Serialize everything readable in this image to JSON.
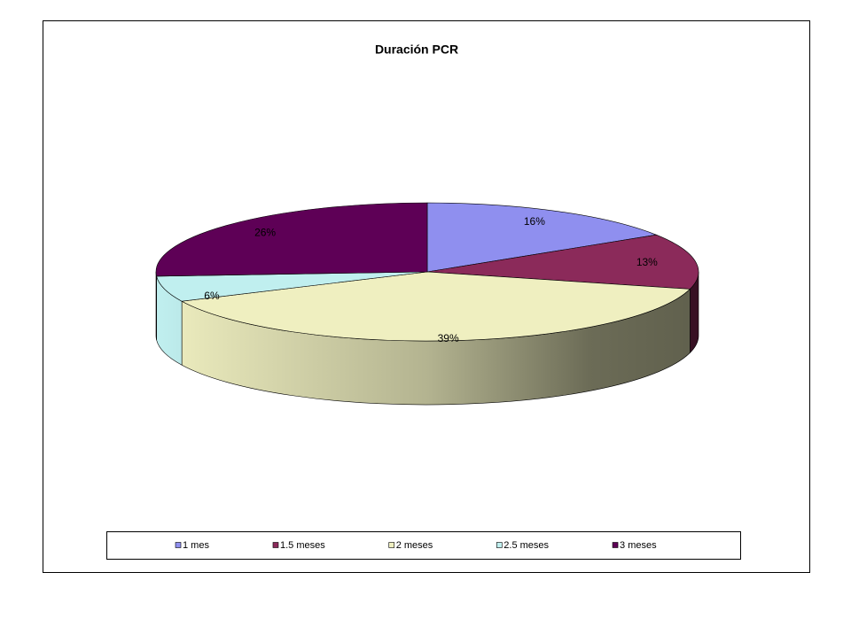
{
  "chart_data": {
    "type": "pie3d",
    "title": "Duración PCR",
    "categories": [
      "1 mes",
      "1.5 meses",
      "2 meses",
      "2.5 meses",
      "3 meses"
    ],
    "values": [
      16,
      13,
      39,
      6,
      26
    ],
    "value_labels": [
      "16%",
      "13%",
      "39%",
      "6%",
      "26%"
    ],
    "colors": [
      "#8f8fef",
      "#8b2a5a",
      "#efefc0",
      "#c0efef",
      "#5e0056"
    ],
    "legend": "bottom"
  }
}
